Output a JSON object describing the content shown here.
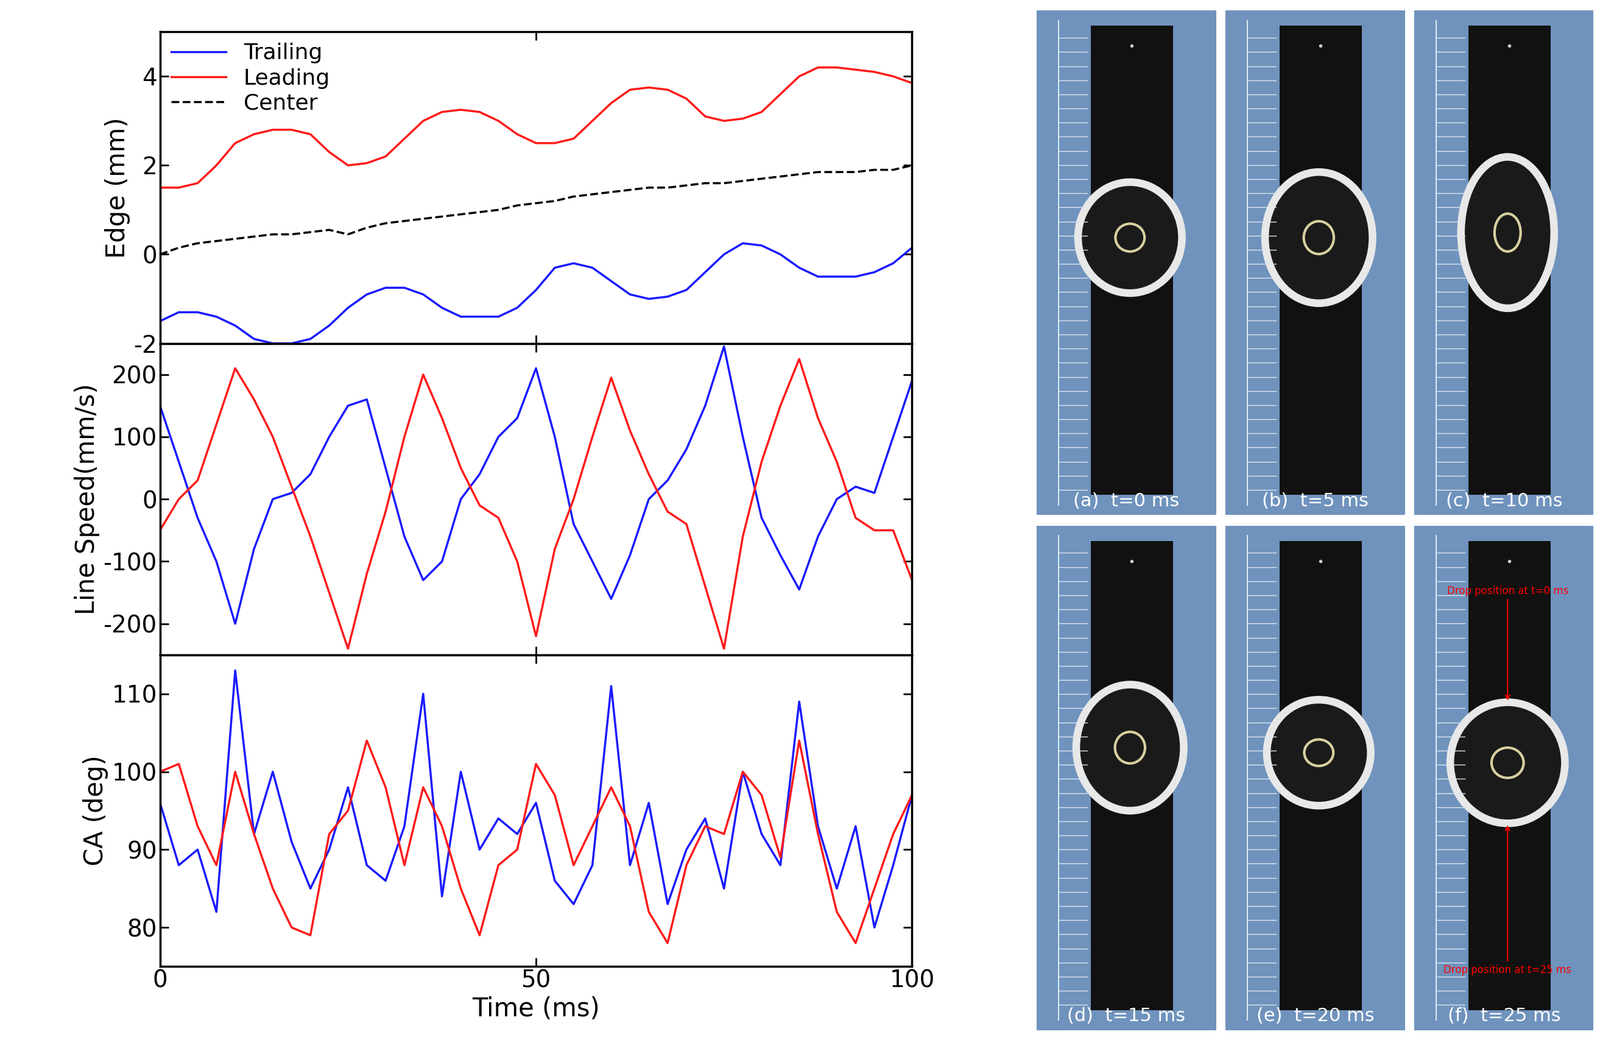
{
  "chart_data": [
    {
      "type": "line",
      "ylabel": "Edge (mm)",
      "xlim": [
        0,
        100
      ],
      "xticks": [
        0,
        50,
        100
      ],
      "ylim": [
        -2,
        5
      ],
      "yticks": [
        -2,
        0,
        2,
        4
      ],
      "tick_labels": "y",
      "legend": "upper left",
      "x": [
        0,
        2.5,
        5,
        7.5,
        10,
        12.5,
        15,
        17.5,
        20,
        22.5,
        25,
        27.5,
        30,
        32.5,
        35,
        37.5,
        40,
        42.5,
        45,
        47.5,
        50,
        52.5,
        55,
        57.5,
        60,
        62.5,
        65,
        67.5,
        70,
        72.5,
        75,
        77.5,
        80,
        82.5,
        85,
        87.5,
        90,
        92.5,
        95,
        97.5,
        100
      ],
      "series": [
        {
          "name": "Trailing",
          "color": "#1a1aff",
          "line_style": "solid",
          "values": [
            -1.5,
            -1.3,
            -1.3,
            -1.4,
            -1.6,
            -1.9,
            -2.0,
            -2.0,
            -1.9,
            -1.6,
            -1.2,
            -0.9,
            -0.75,
            -0.75,
            -0.9,
            -1.2,
            -1.4,
            -1.4,
            -1.4,
            -1.2,
            -0.8,
            -0.3,
            -0.2,
            -0.3,
            -0.6,
            -0.9,
            -1.0,
            -0.95,
            -0.8,
            -0.4,
            0.0,
            0.25,
            0.2,
            0.0,
            -0.3,
            -0.5,
            -0.5,
            -0.5,
            -0.4,
            -0.2,
            0.15
          ]
        },
        {
          "name": "Leading",
          "color": "#ff1a1a",
          "line_style": "solid",
          "values": [
            1.5,
            1.5,
            1.6,
            2.0,
            2.5,
            2.7,
            2.8,
            2.8,
            2.7,
            2.3,
            2.0,
            2.05,
            2.2,
            2.6,
            3.0,
            3.2,
            3.25,
            3.2,
            3.0,
            2.7,
            2.5,
            2.5,
            2.6,
            3.0,
            3.4,
            3.7,
            3.75,
            3.7,
            3.5,
            3.1,
            3.0,
            3.05,
            3.2,
            3.6,
            4.0,
            4.2,
            4.2,
            4.15,
            4.1,
            4.0,
            3.85
          ]
        },
        {
          "name": "Center",
          "color": "#000000",
          "line_style": "dashed",
          "values": [
            0,
            0.15,
            0.25,
            0.3,
            0.35,
            0.4,
            0.45,
            0.45,
            0.5,
            0.55,
            0.45,
            0.6,
            0.7,
            0.75,
            0.8,
            0.85,
            0.9,
            0.95,
            1.0,
            1.1,
            1.15,
            1.2,
            1.3,
            1.35,
            1.4,
            1.45,
            1.5,
            1.5,
            1.55,
            1.6,
            1.6,
            1.65,
            1.7,
            1.75,
            1.8,
            1.85,
            1.85,
            1.85,
            1.9,
            1.9,
            2.0
          ]
        }
      ]
    },
    {
      "type": "line",
      "ylabel": "Line Speed(mm/s)",
      "xlim": [
        0,
        100
      ],
      "xticks": [
        0,
        50,
        100
      ],
      "ylim": [
        -250,
        250
      ],
      "yticks": [
        -200,
        -100,
        0,
        100,
        200
      ],
      "tick_labels": "y",
      "x": [
        0,
        2.5,
        5,
        7.5,
        10,
        12.5,
        15,
        17.5,
        20,
        22.5,
        25,
        27.5,
        30,
        32.5,
        35,
        37.5,
        40,
        42.5,
        45,
        47.5,
        50,
        52.5,
        55,
        57.5,
        60,
        62.5,
        65,
        67.5,
        70,
        72.5,
        75,
        77.5,
        80,
        82.5,
        85,
        87.5,
        90,
        92.5,
        95,
        97.5,
        100
      ],
      "series": [
        {
          "name": "Trailing",
          "color": "#1a1aff",
          "line_style": "solid",
          "values": [
            150,
            60,
            -30,
            -100,
            -200,
            -80,
            0,
            10,
            40,
            100,
            150,
            160,
            50,
            -60,
            -130,
            -100,
            0,
            40,
            100,
            130,
            210,
            100,
            -40,
            -100,
            -160,
            -90,
            0,
            30,
            80,
            150,
            245,
            100,
            -30,
            -90,
            -145,
            -60,
            0,
            20,
            10,
            100,
            190
          ]
        },
        {
          "name": "Leading",
          "color": "#ff1a1a",
          "line_style": "solid",
          "values": [
            -50,
            0,
            30,
            120,
            210,
            160,
            100,
            20,
            -60,
            -150,
            -240,
            -120,
            -20,
            100,
            200,
            130,
            50,
            -10,
            -30,
            -100,
            -220,
            -80,
            0,
            100,
            195,
            110,
            40,
            -20,
            -40,
            -140,
            -240,
            -60,
            60,
            150,
            225,
            130,
            60,
            -30,
            -50,
            -50,
            -130
          ]
        }
      ]
    },
    {
      "type": "line",
      "ylabel": "CA (deg)",
      "xlabel": "Time (ms)",
      "xlim": [
        0,
        100
      ],
      "xticks": [
        0,
        50,
        100
      ],
      "ylim": [
        75,
        115
      ],
      "yticks": [
        80,
        90,
        100,
        110
      ],
      "x": [
        0,
        2.5,
        5,
        7.5,
        10,
        12.5,
        15,
        17.5,
        20,
        22.5,
        25,
        27.5,
        30,
        32.5,
        35,
        37.5,
        40,
        42.5,
        45,
        47.5,
        50,
        52.5,
        55,
        57.5,
        60,
        62.5,
        65,
        67.5,
        70,
        72.5,
        75,
        77.5,
        80,
        82.5,
        85,
        87.5,
        90,
        92.5,
        95,
        97.5,
        100
      ],
      "series": [
        {
          "name": "Trailing",
          "color": "#1a1aff",
          "line_style": "solid",
          "values": [
            96,
            88,
            90,
            82,
            113,
            92,
            100,
            91,
            85,
            90,
            98,
            88,
            86,
            93,
            110,
            84,
            100,
            90,
            94,
            92,
            96,
            86,
            83,
            88,
            111,
            88,
            96,
            83,
            90,
            94,
            85,
            100,
            92,
            88,
            109,
            93,
            85,
            93,
            80,
            88,
            97
          ]
        },
        {
          "name": "Leading",
          "color": "#ff1a1a",
          "line_style": "solid",
          "values": [
            100,
            101,
            93,
            88,
            100,
            92,
            85,
            80,
            79,
            92,
            95,
            104,
            98,
            88,
            98,
            93,
            85,
            79,
            88,
            90,
            101,
            97,
            88,
            93,
            98,
            93,
            82,
            78,
            88,
            93,
            92,
            100,
            97,
            89,
            104,
            92,
            82,
            78,
            85,
            92,
            97
          ]
        }
      ]
    }
  ],
  "photo_panels": [
    {
      "label": "(a)  t=0 ms"
    },
    {
      "label": "(b)  t=5 ms"
    },
    {
      "label": "(c)  t=10 ms"
    },
    {
      "label": "(d)  t=15 ms"
    },
    {
      "label": "(e)  t=20 ms"
    },
    {
      "label": "(f)  t=25 ms",
      "annotations": [
        "Drop position at t=0 ms",
        "Drop position at t=25 ms"
      ]
    }
  ]
}
